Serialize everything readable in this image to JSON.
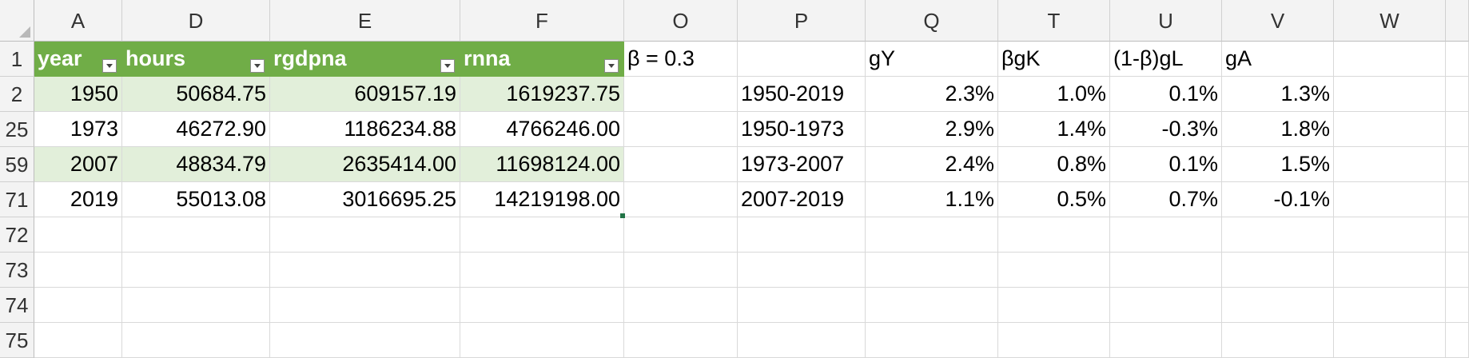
{
  "columns": [
    {
      "key": "A",
      "label": "A",
      "left": 0
    },
    {
      "key": "D",
      "label": "D"
    },
    {
      "key": "E",
      "label": "E"
    },
    {
      "key": "F",
      "label": "F"
    },
    {
      "key": "O",
      "label": "O"
    },
    {
      "key": "P",
      "label": "P"
    },
    {
      "key": "Q",
      "label": "Q"
    },
    {
      "key": "T",
      "label": "T"
    },
    {
      "key": "U",
      "label": "U"
    },
    {
      "key": "V",
      "label": "V"
    },
    {
      "key": "W",
      "label": "W"
    }
  ],
  "rows": [
    "1",
    "2",
    "25",
    "59",
    "71",
    "72",
    "73",
    "74",
    "75"
  ],
  "table": {
    "headers": [
      "year",
      "hours",
      "rgdpna",
      "rnna"
    ],
    "data": [
      [
        "1950",
        "50684.75",
        "609157.19",
        "1619237.75"
      ],
      [
        "1973",
        "46272.90",
        "1186234.88",
        "4766246.00"
      ],
      [
        "2007",
        "48834.79",
        "2635414.00",
        "11698124.00"
      ],
      [
        "2019",
        "55013.08",
        "3016695.25",
        "14219198.00"
      ]
    ]
  },
  "beta_label": "β = 0.3",
  "growth": {
    "headers": [
      "",
      "gY",
      "βgK",
      "(1-β)gL",
      "gA"
    ],
    "data": [
      [
        "1950-2019",
        "2.3%",
        "1.0%",
        "0.1%",
        "1.3%"
      ],
      [
        "1950-1973",
        "2.9%",
        "1.4%",
        "-0.3%",
        "1.8%"
      ],
      [
        "1973-2007",
        "2.4%",
        "0.8%",
        "0.1%",
        "1.5%"
      ],
      [
        "2007-2019",
        "1.1%",
        "0.5%",
        "0.7%",
        "-0.1%"
      ]
    ]
  },
  "colors": {
    "table_header": "#70ad47",
    "band": "#e2efda"
  }
}
